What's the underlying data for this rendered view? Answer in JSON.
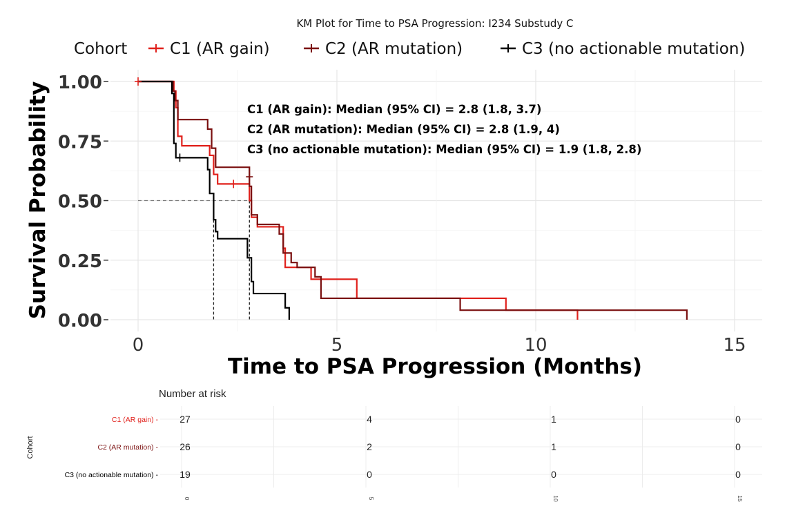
{
  "chart_data": {
    "type": "line",
    "title": "KM Plot for Time to PSA Progression: I234 Substudy C",
    "xlabel": "Time to PSA Progression (Months)",
    "ylabel": "Survival Probability",
    "xlim": [
      0,
      15
    ],
    "ylim": [
      0,
      1
    ],
    "x_ticks": [
      "0",
      "5",
      "10",
      "15"
    ],
    "y_ticks": [
      "0.00",
      "0.25",
      "0.50",
      "0.75",
      "1.00"
    ],
    "grid": true,
    "legend": {
      "title": "Cohort",
      "placement": "top",
      "entries": [
        "C1 (AR gain)",
        "C2 (AR mutation)",
        "C3 (no actionable mutation)"
      ]
    },
    "annotations": [
      "C1 (AR gain): Median (95% CI) = 2.8 (1.8, 3.7)",
      "C2 (AR mutation): Median (95% CI) = 2.8 (1.9, 4)",
      "C3 (no actionable mutation): Median (95% CI) = 1.9 (1.8, 2.8)"
    ],
    "median_lines": [
      1.9,
      2.8
    ],
    "series": [
      {
        "name": "C1 (AR gain)",
        "color": "#e0201b",
        "steps": [
          [
            0,
            1.0
          ],
          [
            0.9,
            0.96
          ],
          [
            0.95,
            0.89
          ],
          [
            1.0,
            0.77
          ],
          [
            1.1,
            0.73
          ],
          [
            1.8,
            0.69
          ],
          [
            1.9,
            0.61
          ],
          [
            2.0,
            0.57
          ],
          [
            2.8,
            0.5
          ],
          [
            2.85,
            0.43
          ],
          [
            3.0,
            0.39
          ],
          [
            3.65,
            0.3
          ],
          [
            3.7,
            0.22
          ],
          [
            4.35,
            0.17
          ],
          [
            5.5,
            0.09
          ],
          [
            8.1,
            0.09
          ],
          [
            9.25,
            0.04
          ],
          [
            11.05,
            0.0
          ]
        ],
        "censored": [
          [
            0,
            1.0
          ],
          [
            2.4,
            0.57
          ]
        ]
      },
      {
        "name": "C2 (AR mutation)",
        "color": "#7a0f0f",
        "steps": [
          [
            0,
            1.0
          ],
          [
            0.88,
            0.96
          ],
          [
            0.93,
            0.92
          ],
          [
            1.0,
            0.84
          ],
          [
            1.45,
            0.84
          ],
          [
            1.65,
            0.84
          ],
          [
            1.75,
            0.8
          ],
          [
            1.85,
            0.72
          ],
          [
            1.95,
            0.64
          ],
          [
            2.8,
            0.56
          ],
          [
            2.85,
            0.44
          ],
          [
            3.0,
            0.4
          ],
          [
            3.55,
            0.36
          ],
          [
            3.65,
            0.28
          ],
          [
            3.85,
            0.24
          ],
          [
            4.0,
            0.22
          ],
          [
            4.45,
            0.18
          ],
          [
            4.6,
            0.09
          ],
          [
            8.1,
            0.04
          ],
          [
            13.8,
            0.0
          ]
        ],
        "censored": [
          [
            2.8,
            0.6
          ]
        ]
      },
      {
        "name": "C3 (no actionable mutation)",
        "color": "#000000",
        "steps": [
          [
            0,
            1.0
          ],
          [
            0.85,
            0.95
          ],
          [
            0.9,
            0.74
          ],
          [
            0.95,
            0.68
          ],
          [
            1.75,
            0.63
          ],
          [
            1.8,
            0.53
          ],
          [
            1.9,
            0.42
          ],
          [
            1.95,
            0.37
          ],
          [
            2.0,
            0.34
          ],
          [
            2.75,
            0.26
          ],
          [
            2.85,
            0.16
          ],
          [
            2.9,
            0.11
          ],
          [
            3.7,
            0.05
          ],
          [
            3.8,
            0.0
          ]
        ],
        "censored": [
          [
            1.05,
            0.68
          ]
        ]
      }
    ]
  },
  "risk_table": {
    "title": "Number at risk",
    "ylabel": "Cohort",
    "x_ticks": [
      "0",
      "5",
      "10",
      "15"
    ],
    "rows": [
      {
        "label": "C1 (AR gain) -",
        "color": "#e0201b",
        "values": [
          "27",
          "4",
          "1",
          "0"
        ]
      },
      {
        "label": "C2 (AR mutation) -",
        "color": "#7a0f0f",
        "values": [
          "26",
          "2",
          "1",
          "0"
        ]
      },
      {
        "label": "C3 (no actionable mutation) -",
        "color": "#000000",
        "values": [
          "19",
          "0",
          "0",
          "0"
        ]
      }
    ]
  }
}
